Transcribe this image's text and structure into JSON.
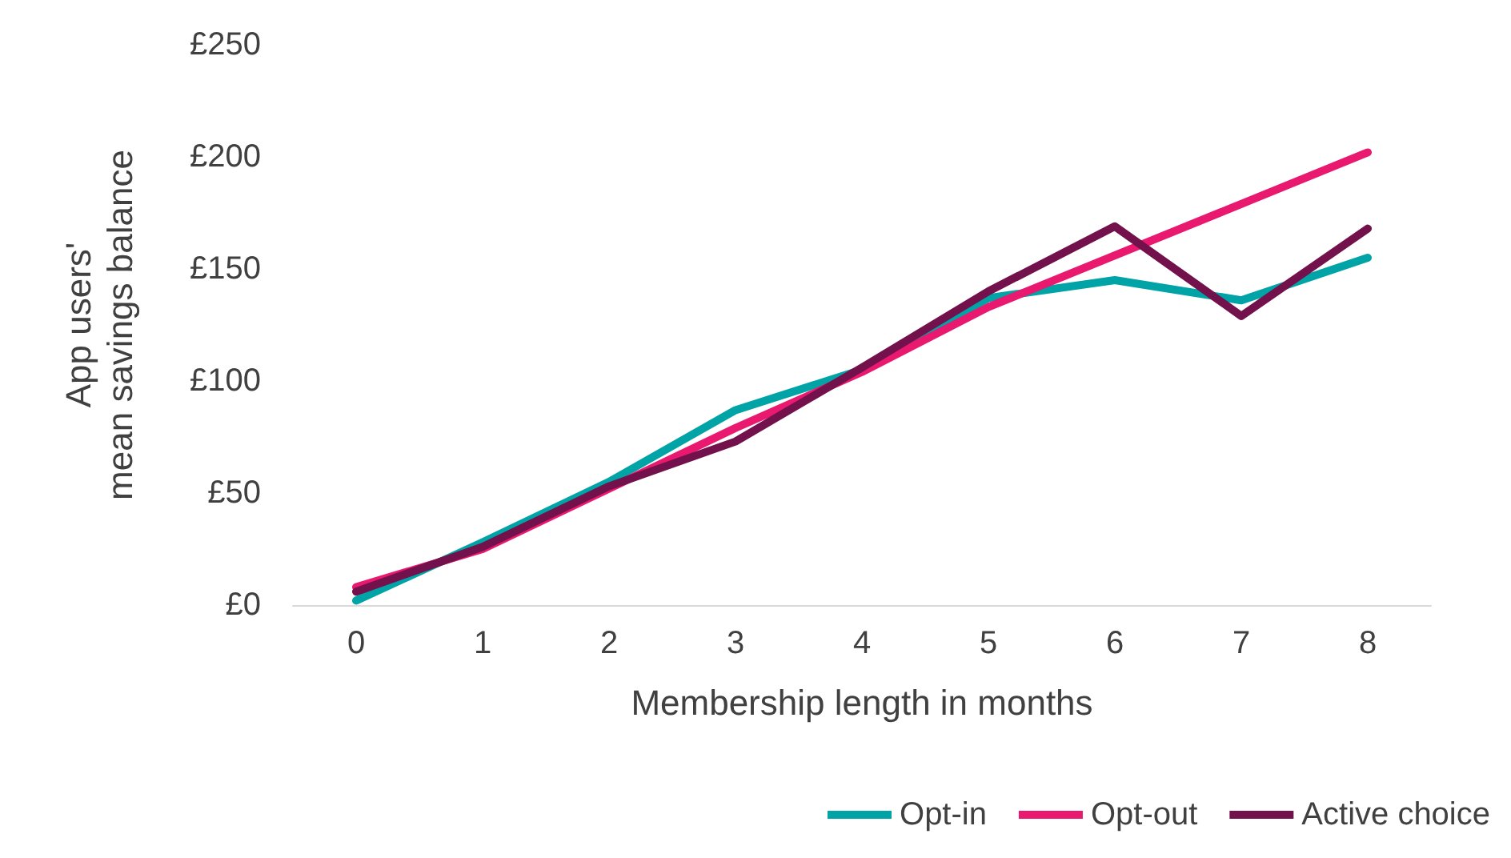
{
  "chart_data": {
    "type": "line",
    "xlabel": "Membership length in months",
    "ylabel": "App users'\nmean savings balance",
    "categories": [
      "0",
      "1",
      "2",
      "3",
      "4",
      "5",
      "6",
      "7",
      "8"
    ],
    "series": [
      {
        "name": "Opt-in",
        "color": "#00a3a6",
        "values": [
          2,
          28,
          55,
          87,
          105,
          137,
          145,
          136,
          155
        ]
      },
      {
        "name": "Opt-out",
        "color": "#e8196e",
        "values": [
          8,
          25,
          52,
          79,
          104,
          133,
          156,
          179,
          202
        ]
      },
      {
        "name": "Active choice",
        "color": "#72114b",
        "values": [
          6,
          26,
          53,
          73,
          106,
          140,
          169,
          129,
          168
        ]
      }
    ],
    "ylim": [
      0,
      250
    ],
    "yticks": [
      {
        "value": 0,
        "label": "£0"
      },
      {
        "value": 50,
        "label": "£50"
      },
      {
        "value": 100,
        "label": "£100"
      },
      {
        "value": 150,
        "label": "£150"
      },
      {
        "value": 200,
        "label": "£200"
      },
      {
        "value": 250,
        "label": "£250"
      }
    ],
    "grid": false,
    "legend": "bottom right",
    "marker": "none",
    "line_style": "solid"
  }
}
